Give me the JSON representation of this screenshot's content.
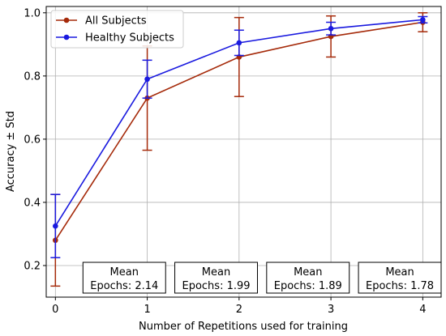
{
  "chart_data": {
    "type": "line",
    "xlabel": "Number of Repetitions used for training",
    "ylabel": "Accuracy ± Std",
    "x": [
      0,
      1,
      2,
      3,
      4
    ],
    "xlim": [
      -0.1,
      4.2
    ],
    "ylim": [
      0.1,
      1.02
    ],
    "xticks": [
      "0",
      "1",
      "2",
      "3",
      "4"
    ],
    "yticks": [
      "0.2",
      "0.4",
      "0.6",
      "0.8",
      "1.0"
    ],
    "grid": true,
    "legend_position": "top-left",
    "series": [
      {
        "name": "All Subjects",
        "color": "#a52a0a",
        "values": [
          0.28,
          0.73,
          0.86,
          0.925,
          0.97
        ],
        "std": [
          0.145,
          0.165,
          0.125,
          0.065,
          0.03
        ]
      },
      {
        "name": "Healthy Subjects",
        "color": "#1a1adf",
        "values": [
          0.325,
          0.79,
          0.905,
          0.95,
          0.978
        ],
        "std": [
          0.1,
          0.06,
          0.04,
          0.02,
          0.01
        ]
      }
    ],
    "annotations": [
      {
        "x_start": 0.3,
        "x_end": 1.2,
        "line1": "Mean",
        "line2": "Epochs: 2.14"
      },
      {
        "x_start": 1.3,
        "x_end": 2.2,
        "line1": "Mean",
        "line2": "Epochs: 1.99"
      },
      {
        "x_start": 2.3,
        "x_end": 3.2,
        "line1": "Mean",
        "line2": "Epochs: 1.89"
      },
      {
        "x_start": 3.3,
        "x_end": 4.2,
        "line1": "Mean",
        "line2": "Epochs: 1.78"
      }
    ]
  }
}
